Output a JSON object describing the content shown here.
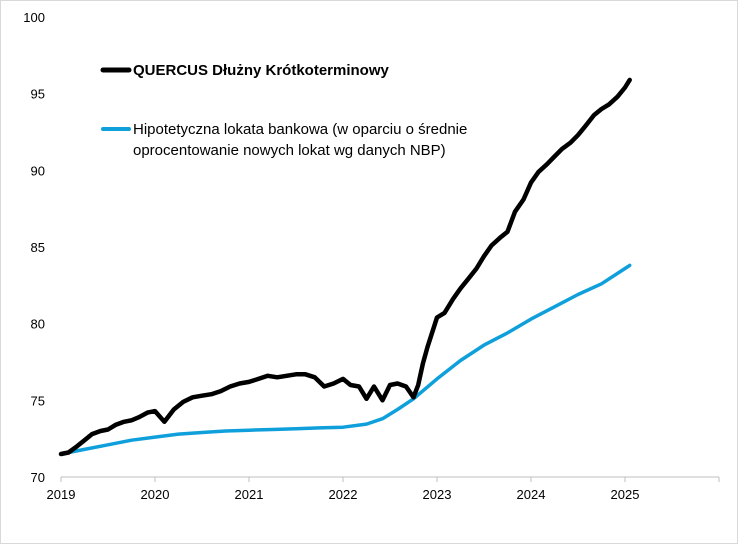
{
  "chart_data": {
    "type": "line",
    "title": "",
    "xlabel": "",
    "ylabel": "",
    "xlim": [
      2019,
      2026
    ],
    "ylim": [
      70,
      100
    ],
    "x_ticks": [
      "2019",
      "2020",
      "2021",
      "2022",
      "2023",
      "2024",
      "2025"
    ],
    "y_ticks": [
      "70",
      "75",
      "80",
      "85",
      "90",
      "95",
      "100"
    ],
    "grid": false,
    "legend": {
      "placement": "top-left",
      "entries": [
        {
          "label": "QUERCUS Dłużny Krótkoterminowy"
        },
        {
          "label_lines": [
            "Hipotetyczna lokata bankowa (w oparciu o średnie",
            "oprocentowanie nowych lokat wg danych NBP)"
          ]
        }
      ]
    },
    "series": [
      {
        "name": "QUERCUS Dłużny Krótkoterminowy",
        "color": "#000000",
        "x": [
          2019.0,
          2019.08,
          2019.17,
          2019.25,
          2019.33,
          2019.42,
          2019.5,
          2019.58,
          2019.67,
          2019.75,
          2019.83,
          2019.92,
          2020.0,
          2020.1,
          2020.2,
          2020.3,
          2020.4,
          2020.5,
          2020.6,
          2020.7,
          2020.8,
          2020.9,
          2021.0,
          2021.1,
          2021.2,
          2021.3,
          2021.4,
          2021.5,
          2021.6,
          2021.7,
          2021.8,
          2021.9,
          2022.0,
          2022.08,
          2022.17,
          2022.25,
          2022.33,
          2022.42,
          2022.5,
          2022.58,
          2022.67,
          2022.75,
          2022.8,
          2022.85,
          2022.9,
          2023.0,
          2023.08,
          2023.17,
          2023.25,
          2023.33,
          2023.42,
          2023.5,
          2023.58,
          2023.67,
          2023.75,
          2023.83,
          2023.92,
          2024.0,
          2024.08,
          2024.17,
          2024.25,
          2024.33,
          2024.42,
          2024.5,
          2024.58,
          2024.67,
          2024.75,
          2024.83,
          2024.92,
          2025.0,
          2025.05
        ],
        "values": [
          71.5,
          71.6,
          72.0,
          72.4,
          72.8,
          73.0,
          73.1,
          73.4,
          73.6,
          73.7,
          73.9,
          74.2,
          74.3,
          73.6,
          74.4,
          74.9,
          75.2,
          75.3,
          75.4,
          75.6,
          75.9,
          76.1,
          76.2,
          76.4,
          76.6,
          76.5,
          76.6,
          76.7,
          76.7,
          76.5,
          75.9,
          76.1,
          76.4,
          76.0,
          75.9,
          75.1,
          75.9,
          75.0,
          76.0,
          76.1,
          75.9,
          75.2,
          76.0,
          77.4,
          78.5,
          80.4,
          80.7,
          81.6,
          82.3,
          82.9,
          83.6,
          84.4,
          85.1,
          85.6,
          86.0,
          87.3,
          88.1,
          89.2,
          89.9,
          90.4,
          90.9,
          91.4,
          91.8,
          92.3,
          92.9,
          93.6,
          94.0,
          94.3,
          94.8,
          95.4,
          95.9
        ]
      },
      {
        "name": "Hipotetyczna lokata bankowa (w oparciu o średnie oprocentowanie nowych lokat wg danych NBP)",
        "color": "#0fa0dc",
        "x": [
          2019.0,
          2019.25,
          2019.5,
          2019.75,
          2020.0,
          2020.25,
          2020.5,
          2020.75,
          2021.0,
          2021.25,
          2021.5,
          2021.75,
          2022.0,
          2022.25,
          2022.42,
          2022.58,
          2022.75,
          2023.0,
          2023.25,
          2023.5,
          2023.75,
          2024.0,
          2024.25,
          2024.5,
          2024.75,
          2025.0,
          2025.05
        ],
        "values": [
          71.5,
          71.8,
          72.1,
          72.4,
          72.6,
          72.8,
          72.9,
          73.0,
          73.05,
          73.1,
          73.15,
          73.2,
          73.25,
          73.45,
          73.8,
          74.4,
          75.1,
          76.4,
          77.6,
          78.6,
          79.4,
          80.3,
          81.1,
          81.9,
          82.6,
          83.6,
          83.8
        ]
      }
    ]
  }
}
